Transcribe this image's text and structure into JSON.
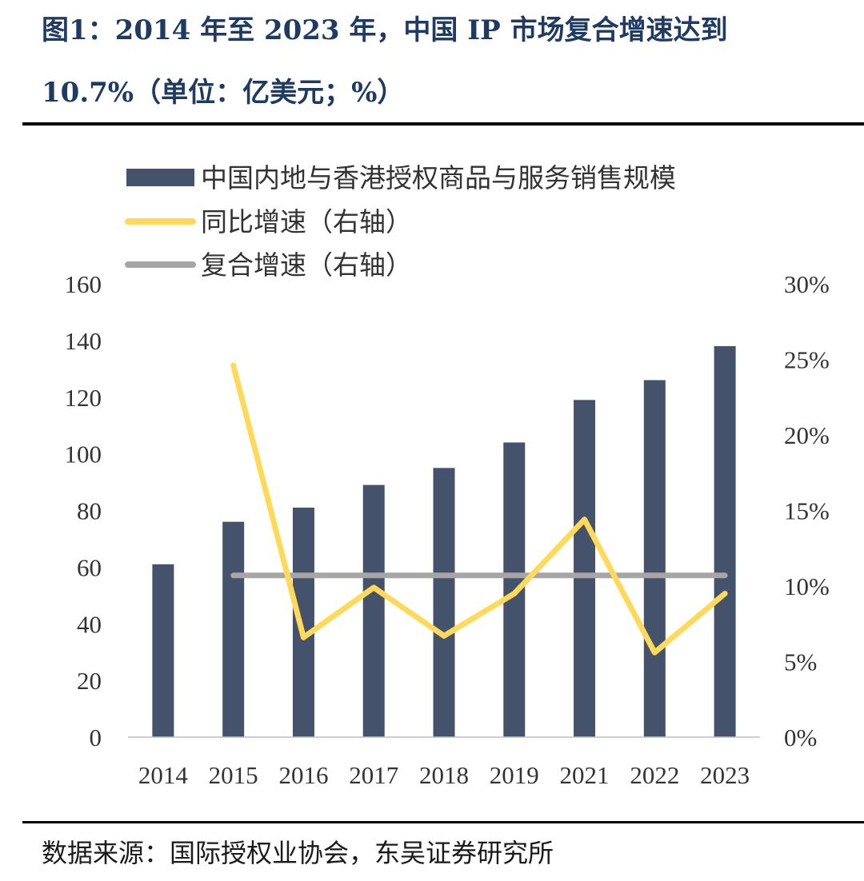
{
  "title_lines": [
    "图1：2014 年至 2023 年，中国 IP 市场复合增速达到",
    "10.7%（单位：亿美元；%）"
  ],
  "source": "数据来源：国际授权业协会，东吴证券研究所",
  "colors": {
    "bar": "#44536b",
    "yoy_line": "#ffd95a",
    "cagr_line": "#a6a6a6",
    "title": "#1f3b63"
  },
  "chart_data": {
    "type": "bar+line",
    "categories": [
      "2014",
      "2015",
      "2016",
      "2017",
      "2018",
      "2019",
      "2021",
      "2022",
      "2023"
    ],
    "series": [
      {
        "name": "中国内地与香港授权商品与服务销售规模",
        "kind": "bar",
        "axis": "left",
        "values": [
          61,
          76,
          81,
          89,
          95,
          104,
          119,
          126,
          138
        ]
      },
      {
        "name": "同比增速（右轴）",
        "kind": "line",
        "axis": "right",
        "values": [
          null,
          24.6,
          6.6,
          9.9,
          6.7,
          9.5,
          14.4,
          5.6,
          9.5
        ]
      },
      {
        "name": "复合增速（右轴）",
        "kind": "line",
        "axis": "right",
        "values": [
          null,
          10.7,
          10.7,
          10.7,
          10.7,
          10.7,
          10.7,
          10.7,
          10.7
        ]
      }
    ],
    "y_left": {
      "min": 0,
      "max": 160,
      "step": 20,
      "tick_labels": [
        "0",
        "20",
        "40",
        "60",
        "80",
        "100",
        "120",
        "140",
        "160"
      ]
    },
    "y_right": {
      "min": 0,
      "max": 30,
      "step": 5,
      "tick_labels": [
        "0%",
        "5%",
        "10%",
        "15%",
        "20%",
        "25%",
        "30%"
      ]
    },
    "legend_position": "top-left",
    "grid": false
  }
}
